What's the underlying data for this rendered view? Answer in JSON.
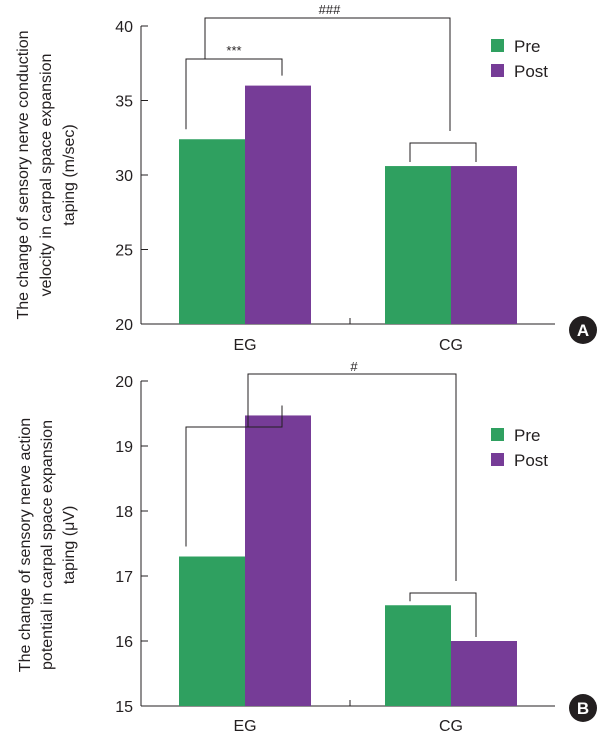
{
  "chart_data": [
    {
      "type": "bar",
      "panel": "A",
      "categories": [
        "EG",
        "CG"
      ],
      "series": [
        {
          "name": "Pre",
          "values": [
            32.4,
            30.6
          ]
        },
        {
          "name": "Post",
          "values": [
            36.0,
            30.6
          ]
        }
      ],
      "ylabel_lines": [
        "The change of sensory nerve conduction",
        "velocity in carpal space expansion",
        "taping (m/sec)"
      ],
      "ylim": [
        20,
        40
      ],
      "yticks": [
        "20",
        "25",
        "30",
        "35",
        "40"
      ],
      "legend_position": "top-right",
      "annotations": {
        "within_group": "***",
        "between_group": "###"
      }
    },
    {
      "type": "bar",
      "panel": "B",
      "categories": [
        "EG",
        "CG"
      ],
      "series": [
        {
          "name": "Pre",
          "values": [
            17.3,
            16.55
          ]
        },
        {
          "name": "Post",
          "values": [
            19.47,
            16.0
          ]
        }
      ],
      "ylabel_lines": [
        "The change of sensory nerve action",
        "potential in carpal space expansion",
        "taping (μV)"
      ],
      "ylim": [
        15,
        20
      ],
      "yticks": [
        "15",
        "16",
        "17",
        "18",
        "19",
        "20"
      ],
      "legend_position": "top-right",
      "annotations": {
        "within_group": "",
        "between_group": "#"
      }
    }
  ],
  "colors": {
    "pre": "#2fa060",
    "post": "#763c97",
    "axis": "#231f20",
    "badge": "#231f20"
  }
}
